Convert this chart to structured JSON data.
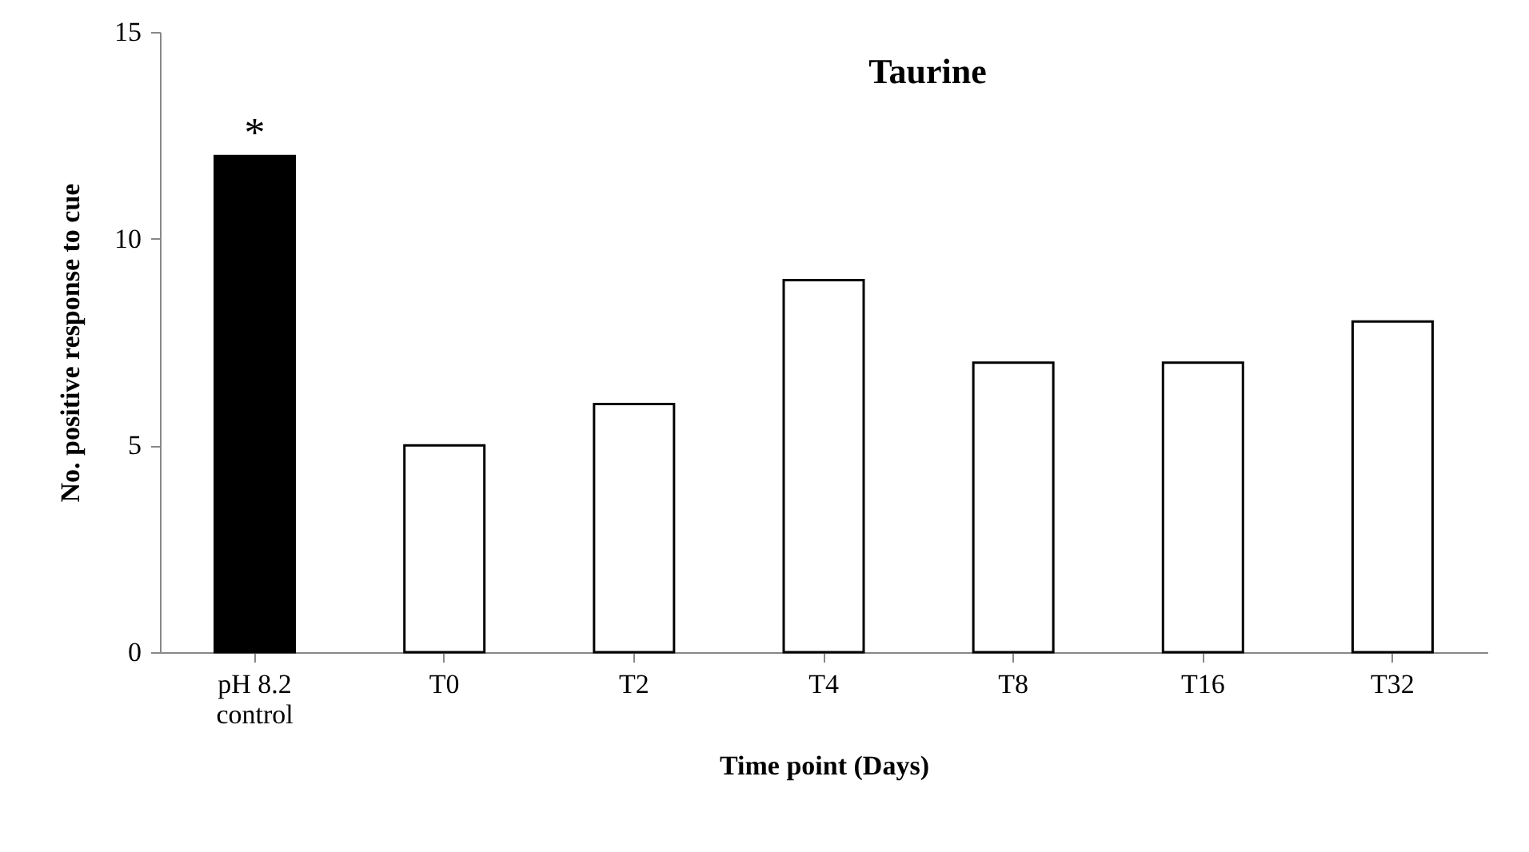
{
  "chart_data": {
    "type": "bar",
    "title": "Taurine",
    "xlabel": "Time point (Days)",
    "ylabel": "No. positive response to cue",
    "categories": [
      "pH 8.2 control",
      "T0",
      "T2",
      "T4",
      "T8",
      "T16",
      "T32"
    ],
    "values": [
      12,
      5,
      6,
      9,
      7,
      7,
      8
    ],
    "colors": [
      "#000000",
      "#ffffff",
      "#ffffff",
      "#ffffff",
      "#ffffff",
      "#ffffff",
      "#ffffff"
    ],
    "ylim": [
      0,
      15
    ],
    "yticks": [
      0,
      5,
      10,
      15
    ],
    "grid": false,
    "annotations": [
      {
        "text": "*",
        "x": "pH 8.2 control",
        "y": 12
      }
    ]
  }
}
